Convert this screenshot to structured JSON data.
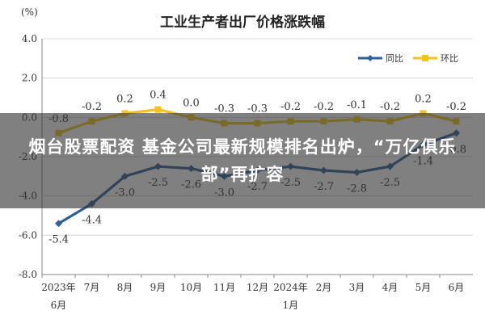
{
  "chart_data": {
    "type": "line",
    "title": "工业生产者出厂价格涨跌幅",
    "y_unit": "(%)",
    "ylim": [
      -8.0,
      4.0
    ],
    "y_ticks": [
      "4.0",
      "2.0",
      "0.0",
      "-2.0",
      "-4.0",
      "-6.0",
      "-8.0"
    ],
    "categories": [
      "2023年6月",
      "7月",
      "8月",
      "9月",
      "10月",
      "11月",
      "12月",
      "2024年1月",
      "2月",
      "3月",
      "4月",
      "5月",
      "6月"
    ],
    "x_tick_lines": [
      [
        "2023年",
        "6月"
      ],
      [
        "7月"
      ],
      [
        "8月"
      ],
      [
        "9月"
      ],
      [
        "10月"
      ],
      [
        "11月"
      ],
      [
        "12月"
      ],
      [
        "2024年",
        "1月"
      ],
      [
        "2月"
      ],
      [
        "3月"
      ],
      [
        "4月"
      ],
      [
        "5月"
      ],
      [
        "6月"
      ]
    ],
    "legend_position": "top-right",
    "grid": true,
    "series": [
      {
        "name": "同比",
        "color": "#2f5f97",
        "values": [
          -5.4,
          -4.4,
          -3.0,
          -2.5,
          -2.6,
          -3.0,
          -2.7,
          -2.5,
          -2.7,
          -2.8,
          -2.5,
          -1.4,
          -0.8
        ],
        "labels": [
          "-5.4",
          "-4.4",
          "-3.0",
          "-2.5",
          "-2.6",
          "-3.0",
          "-2.7",
          "-2.5",
          "-2.7",
          "-2.8",
          "-2.5",
          "-1.4",
          "-0.8"
        ]
      },
      {
        "name": "环比",
        "color": "#f0c419",
        "values": [
          -0.8,
          -0.2,
          0.2,
          0.4,
          0.0,
          -0.3,
          -0.3,
          -0.2,
          -0.2,
          -0.1,
          -0.2,
          0.2,
          -0.2
        ],
        "labels": [
          "-0.8",
          "-0.2",
          "0.2",
          "0.4",
          "0.0",
          "-0.3",
          "-0.3",
          "-0.2",
          "-0.2",
          "-0.1",
          "-0.2",
          "0.2",
          "-0.2"
        ]
      }
    ]
  },
  "banner": {
    "headline": "烟台股票配资 基金公司最新规模排名出炉，“万亿俱乐部”再扩容"
  }
}
